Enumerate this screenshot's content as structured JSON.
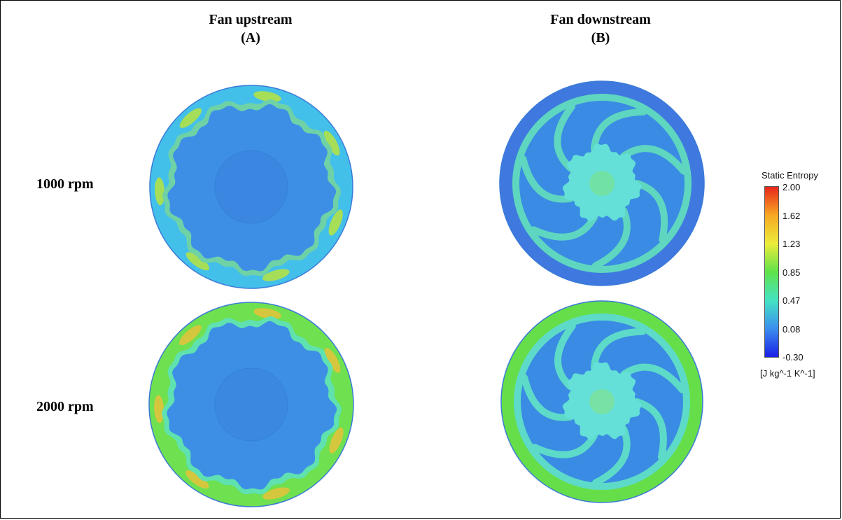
{
  "columns": [
    {
      "title": "Fan upstream",
      "sub": "(A)"
    },
    {
      "title": "Fan downstream",
      "sub": "(B)"
    }
  ],
  "rows": [
    {
      "label": "1000 rpm"
    },
    {
      "label": "2000 rpm"
    }
  ],
  "legend": {
    "title": "Static Entropy",
    "ticks": [
      "2.00",
      "1.62",
      "1.23",
      "0.85",
      "0.47",
      "0.08",
      "-0.30"
    ],
    "units": "[J kg^-1 K^-1]",
    "colors": [
      "#e8261c",
      "#f7a823",
      "#ecec3a",
      "#5fe34a",
      "#45e3c3",
      "#3a8fef",
      "#1a1ee6"
    ]
  },
  "plots": [
    {
      "name": "upstream-1000",
      "kind": "upstream",
      "base": "#3d8fe6",
      "rim": "#43c0ea",
      "edge": "#6ed2a6",
      "hot": "#b8e33e",
      "hub": "#3a86e0"
    },
    {
      "name": "downstream-1000",
      "kind": "downstream",
      "base": "#3a8be3",
      "rim": "#3f79df",
      "edge": "#5fd6c0",
      "hot": "#8be24a",
      "hub": "#64e0d8"
    },
    {
      "name": "upstream-2000",
      "kind": "upstream",
      "base": "#3d8fe6",
      "rim": "#6fe050",
      "edge": "#5fe1b0",
      "hot": "#e8c23a",
      "hub": "#3b88e1"
    },
    {
      "name": "downstream-2000",
      "kind": "downstream",
      "base": "#3a8be3",
      "rim": "#66de4a",
      "edge": "#5ddbc8",
      "hot": "#9ee34a",
      "hub": "#64e0d8"
    }
  ]
}
